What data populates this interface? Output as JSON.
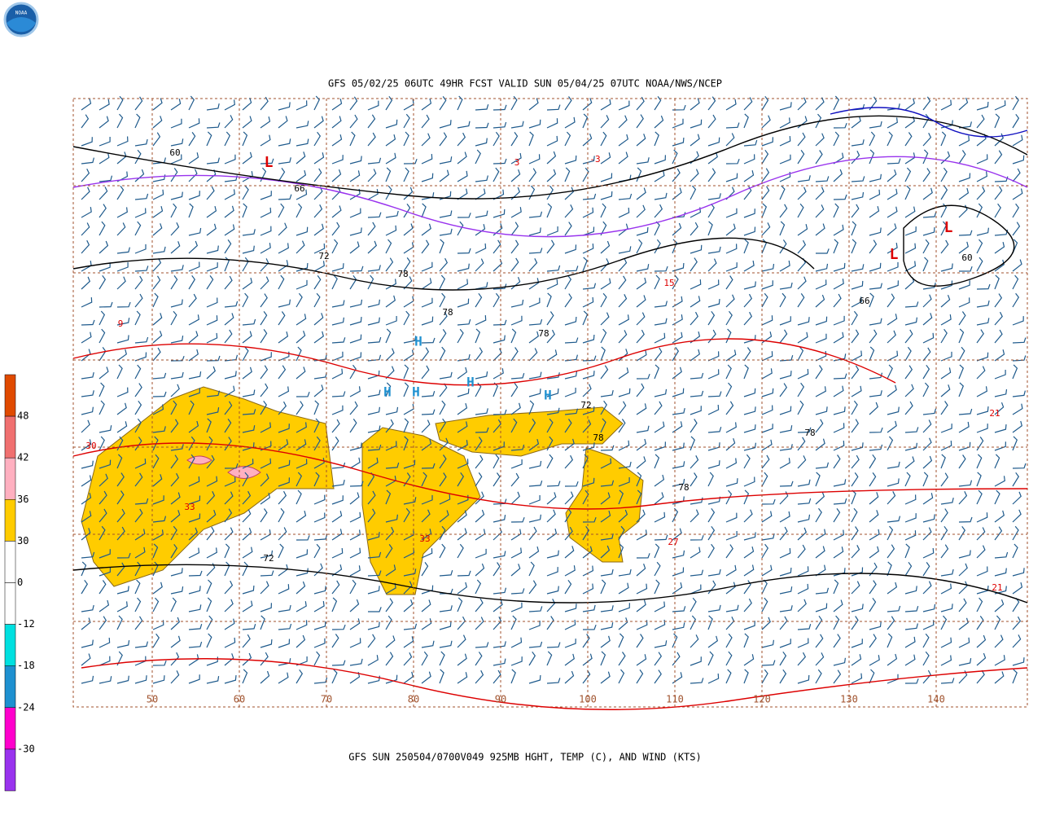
{
  "header": {
    "title": "GFS 05/02/25 06UTC 49HR FCST VALID SUN 05/04/25 07UTC NOAA/NWS/NCEP",
    "logo": "NOAA"
  },
  "footer": {
    "caption": "GFS SUN 250504/0700V049 925MB HGHT, TEMP (C), AND WIND (KTS)"
  },
  "colorbar": {
    "colors": [
      "#e04a00",
      "#f07070",
      "#ffb0c0",
      "#ffcc00",
      "#ffffff",
      "#ffffff",
      "#00e0e0",
      "#1e90d0",
      "#ff00cc",
      "#9933ee"
    ],
    "ticks": [
      48,
      42,
      36,
      30,
      0,
      -12,
      -18,
      -24,
      -30
    ]
  },
  "map": {
    "longitude_labels": [
      "50",
      "60",
      "70",
      "80",
      "90",
      "100",
      "110",
      "120",
      "130",
      "140"
    ],
    "height_labels": [
      "60",
      "66",
      "72",
      "78",
      "78",
      "78",
      "72",
      "78",
      "66",
      "60",
      "78",
      "72",
      "78"
    ],
    "temp_labels": [
      "33",
      "33",
      "30",
      "27",
      "21",
      "15",
      "9",
      "3",
      "-3",
      "21"
    ],
    "lows": [
      "L",
      "L",
      "L"
    ],
    "highs": [
      "H",
      "H",
      "H",
      "H",
      "H"
    ]
  }
}
